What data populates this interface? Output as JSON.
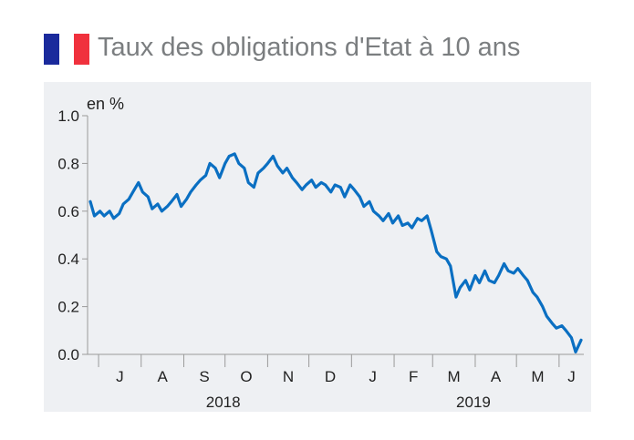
{
  "header": {
    "title": "Taux des obligations d'Etat à 10 ans",
    "flag_colors": [
      "#1a2a9c",
      "#ffffff",
      "#f0313d"
    ],
    "flag_icon": "france-flag-icon"
  },
  "colors": {
    "line": "#0a6fc2",
    "panel": "#eef0f3",
    "axis": "#9a9a9a"
  },
  "chart_data": {
    "type": "line",
    "ylabel": "en %",
    "ylim": [
      0.0,
      1.0
    ],
    "yticks": [
      "0.0",
      "0.2",
      "0.4",
      "0.6",
      "0.8",
      "1.0"
    ],
    "month_labels": [
      "J",
      "A",
      "S",
      "O",
      "N",
      "D",
      "J",
      "F",
      "M",
      "A",
      "M",
      "J"
    ],
    "year_labels": [
      {
        "label": "2018",
        "month_index": 3
      },
      {
        "label": "2019",
        "month_index": 9
      }
    ],
    "series": [
      {
        "x": [
          "2018-06-25",
          "2018-06-28",
          "2018-07-02",
          "2018-07-05",
          "2018-07-09",
          "2018-07-12",
          "2018-07-16",
          "2018-07-19",
          "2018-07-23",
          "2018-07-26",
          "2018-07-30",
          "2018-08-02",
          "2018-08-06",
          "2018-08-09",
          "2018-08-13",
          "2018-08-16",
          "2018-08-20",
          "2018-08-23",
          "2018-08-27",
          "2018-08-30",
          "2018-09-03",
          "2018-09-06",
          "2018-09-10",
          "2018-09-13",
          "2018-09-17",
          "2018-09-20",
          "2018-09-24",
          "2018-09-27",
          "2018-10-01",
          "2018-10-04",
          "2018-10-08",
          "2018-10-11",
          "2018-10-15",
          "2018-10-18",
          "2018-10-22",
          "2018-10-25",
          "2018-10-29",
          "2018-11-01",
          "2018-11-05",
          "2018-11-08",
          "2018-11-12",
          "2018-11-15",
          "2018-11-19",
          "2018-11-22",
          "2018-11-26",
          "2018-11-29",
          "2018-12-03",
          "2018-12-06",
          "2018-12-10",
          "2018-12-13",
          "2018-12-17",
          "2018-12-20",
          "2018-12-24",
          "2018-12-27",
          "2018-12-31",
          "2019-01-03",
          "2019-01-07",
          "2019-01-10",
          "2019-01-14",
          "2019-01-17",
          "2019-01-21",
          "2019-01-24",
          "2019-01-28",
          "2019-01-31",
          "2019-02-04",
          "2019-02-07",
          "2019-02-11",
          "2019-02-14",
          "2019-02-18",
          "2019-02-21",
          "2019-02-25",
          "2019-02-28",
          "2019-03-04",
          "2019-03-07",
          "2019-03-11",
          "2019-03-14",
          "2019-03-18",
          "2019-03-21",
          "2019-03-25",
          "2019-03-28",
          "2019-04-01",
          "2019-04-04",
          "2019-04-08",
          "2019-04-11",
          "2019-04-15",
          "2019-04-18",
          "2019-04-22",
          "2019-04-25",
          "2019-04-29",
          "2019-05-02",
          "2019-05-06",
          "2019-05-09",
          "2019-05-13",
          "2019-05-16",
          "2019-05-20",
          "2019-05-23",
          "2019-05-27",
          "2019-05-30",
          "2019-06-03",
          "2019-06-06",
          "2019-06-10",
          "2019-06-13",
          "2019-06-17"
        ],
        "values": [
          0.64,
          0.58,
          0.6,
          0.58,
          0.6,
          0.57,
          0.59,
          0.63,
          0.65,
          0.68,
          0.72,
          0.68,
          0.66,
          0.61,
          0.63,
          0.6,
          0.62,
          0.64,
          0.67,
          0.62,
          0.65,
          0.68,
          0.71,
          0.73,
          0.75,
          0.8,
          0.78,
          0.74,
          0.8,
          0.83,
          0.84,
          0.8,
          0.78,
          0.72,
          0.7,
          0.76,
          0.78,
          0.8,
          0.83,
          0.79,
          0.76,
          0.78,
          0.74,
          0.72,
          0.69,
          0.71,
          0.73,
          0.7,
          0.72,
          0.71,
          0.68,
          0.71,
          0.7,
          0.66,
          0.71,
          0.69,
          0.66,
          0.62,
          0.64,
          0.6,
          0.58,
          0.56,
          0.59,
          0.55,
          0.58,
          0.54,
          0.55,
          0.53,
          0.57,
          0.56,
          0.58,
          0.52,
          0.43,
          0.41,
          0.4,
          0.37,
          0.24,
          0.28,
          0.31,
          0.27,
          0.33,
          0.3,
          0.35,
          0.31,
          0.3,
          0.33,
          0.38,
          0.35,
          0.34,
          0.36,
          0.33,
          0.31,
          0.26,
          0.24,
          0.2,
          0.16,
          0.13,
          0.11,
          0.12,
          0.1,
          0.07,
          0.01,
          0.06
        ]
      }
    ]
  }
}
